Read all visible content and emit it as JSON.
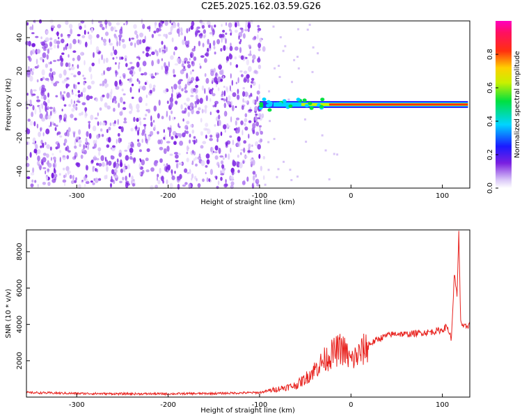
{
  "title": "C2E5.2025.162.03.59.G26",
  "chart_data": [
    {
      "type": "heatmap",
      "xlabel": "Height of straight line (km)",
      "ylabel": "Frequency (Hz)",
      "xlim": [
        -355,
        130
      ],
      "ylim": [
        -50,
        50
      ],
      "xticks": [
        -300,
        -200,
        -100,
        0,
        100
      ],
      "yticks": [
        -40,
        -20,
        0,
        20,
        40
      ],
      "colorbar": {
        "label": "Normalized spectral amplitude",
        "range": [
          0,
          1
        ],
        "ticks": [
          0.0,
          0.2,
          0.4,
          0.6,
          0.8
        ],
        "tick_labels": [
          "0.0",
          "0.2",
          "0.4",
          "0.6",
          "0.8"
        ],
        "colormap": "rainbow (purple-blue-cyan-green-yellow-red-magenta)"
      },
      "description_regions": {
        "noise_region_x": [
          -355,
          -95
        ],
        "signal_line_x": [
          -100,
          128
        ],
        "signal_freq_hz": 0
      }
    },
    {
      "type": "line",
      "xlabel": "Height of straight line (km)",
      "ylabel": "SNR (10 * v/v)",
      "xlim": [
        -355,
        130
      ],
      "ylim": [
        0,
        9200
      ],
      "xticks": [
        -300,
        -200,
        -100,
        0,
        100
      ],
      "yticks": [
        2000,
        4000,
        6000,
        8000
      ],
      "series": [
        {
          "color": "#e8231f",
          "x": [
            -355,
            -300,
            -250,
            -200,
            -150,
            -100,
            -80,
            -60,
            -50,
            -40,
            -30,
            -20,
            -10,
            0,
            10,
            20,
            30,
            40,
            50,
            60,
            70,
            80,
            90,
            100,
            105,
            110,
            113,
            116,
            118,
            120,
            123,
            126,
            130
          ],
          "y": [
            250,
            200,
            180,
            180,
            200,
            250,
            450,
            650,
            1000,
            1500,
            2000,
            2400,
            2700,
            2000,
            2400,
            2900,
            3200,
            3400,
            3500,
            3450,
            3500,
            3550,
            3600,
            3700,
            3900,
            3200,
            6800,
            5500,
            9000,
            4200,
            3800,
            3900,
            4000
          ]
        }
      ]
    }
  ]
}
